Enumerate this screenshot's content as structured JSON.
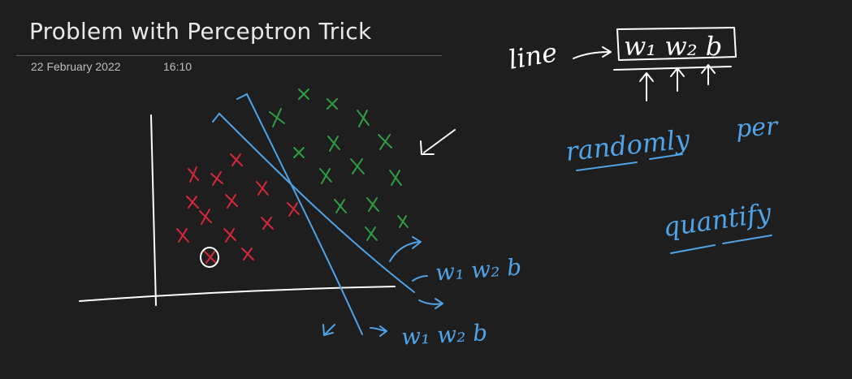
{
  "page": {
    "title": "Problem with Perceptron Trick",
    "date": "22 February 2022",
    "time": "16:10"
  },
  "notes": {
    "line_word": "line",
    "params": "w₁ w₂ b",
    "randomly": "randomly",
    "per": "per",
    "quantify": "quantify"
  },
  "labels": {
    "line1": "w₁ w₂ b",
    "line2": "w₁ w₂ b"
  },
  "colors": {
    "background": "#1e1e1e",
    "ink_white": "#ffffff",
    "ink_blue": "#4fa3e6",
    "class_green": "#2e9e44",
    "class_red": "#d6283a"
  }
}
